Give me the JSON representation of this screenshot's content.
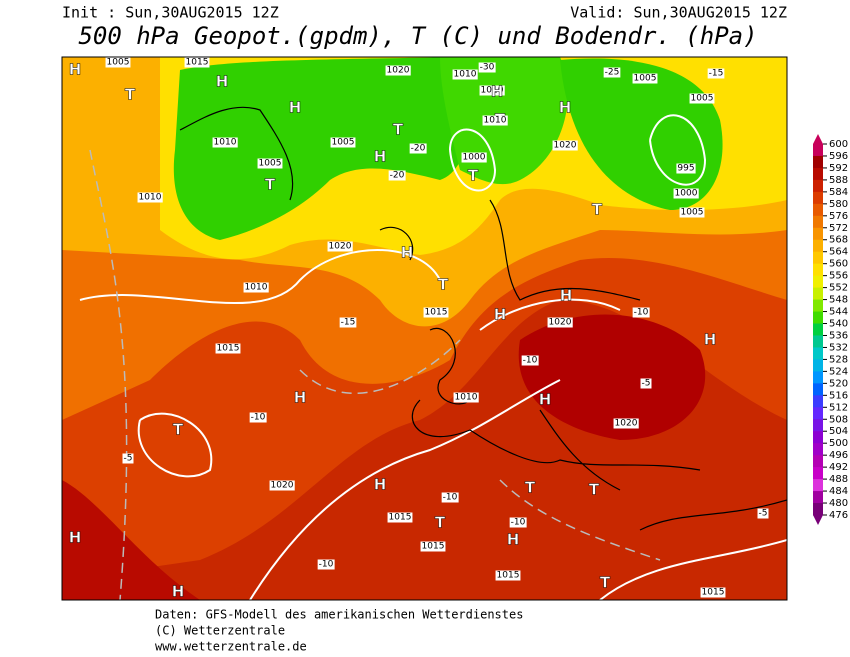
{
  "header": {
    "init": "Init : Sun,30AUG2015 12Z",
    "valid": "Valid: Sun,30AUG2015 12Z",
    "title": "500 hPa Geopot.(gpdm), T (C) und Bodendr. (hPa)"
  },
  "colorbar": {
    "ticks": [
      600,
      596,
      592,
      588,
      584,
      580,
      576,
      572,
      568,
      564,
      560,
      556,
      552,
      548,
      544,
      540,
      536,
      532,
      528,
      524,
      520,
      516,
      512,
      508,
      504,
      500,
      496,
      492,
      488,
      484,
      480,
      476
    ],
    "colors": [
      "#c8005a",
      "#a00000",
      "#b80a00",
      "#cc2000",
      "#dc3c00",
      "#e85a00",
      "#f07800",
      "#f89400",
      "#fcb000",
      "#ffc800",
      "#ffe000",
      "#f0f000",
      "#c8f000",
      "#80e800",
      "#40dc00",
      "#00d040",
      "#00c890",
      "#00c8c8",
      "#00b4e6",
      "#0096ff",
      "#0064ff",
      "#3c3cff",
      "#6428ff",
      "#7814e6",
      "#8c00d2",
      "#a000c8",
      "#b400b4",
      "#c800c8",
      "#dc32dc",
      "#a000a0",
      "#780078"
    ]
  },
  "map_labels": [
    "H",
    "T",
    "1005",
    "1015",
    "H",
    "1020",
    "1010",
    "-30",
    "1010",
    "H",
    "-25",
    "1005",
    "-15",
    "T",
    "H",
    "1010",
    "1005",
    "T",
    "H",
    "1005",
    "-20",
    "1000",
    "T",
    "1020",
    "H",
    "1010",
    "T",
    "-20",
    "1005",
    "1010",
    "995",
    "1000",
    "1005",
    "T",
    "1020",
    "H",
    "1010",
    "T",
    "-15",
    "1015",
    "H",
    "-10",
    "1015",
    "H",
    "1020",
    "-10",
    "H",
    "-5",
    "H",
    "1010",
    "T",
    "-5",
    "1020",
    "1020",
    "H",
    "-10",
    "T",
    "T",
    "H",
    "1015",
    "-10",
    "T",
    "-10",
    "H",
    "H",
    "1015",
    "-10",
    "1015",
    "T",
    "-5",
    "H",
    "1015"
  ],
  "footer": [
    "Daten: GFS-Modell des amerikanischen Wetterdienstes",
    "(C) Wetterzentrale",
    "www.wetterzentrale.de"
  ]
}
